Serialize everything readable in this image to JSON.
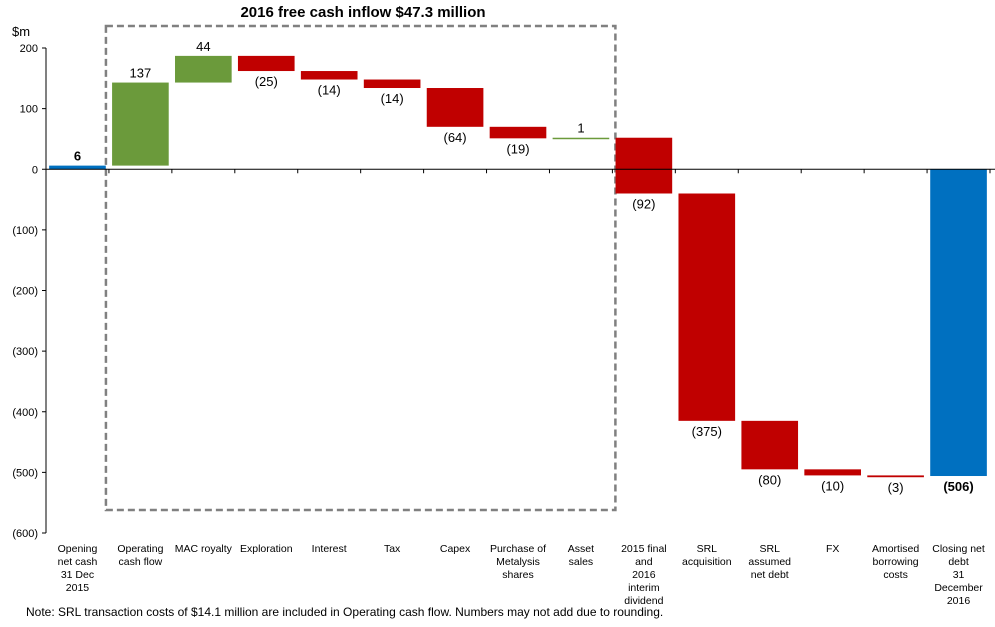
{
  "chart_data": {
    "type": "waterfall",
    "title": "2016 free cash inflow $47.3 million",
    "ylabel": "$m",
    "ylim": [
      -600,
      200
    ],
    "yticks": [
      {
        "value": 200,
        "label": "200"
      },
      {
        "value": 100,
        "label": "100"
      },
      {
        "value": 0,
        "label": "0"
      },
      {
        "value": -100,
        "label": "(100)"
      },
      {
        "value": -200,
        "label": "(200)"
      },
      {
        "value": -300,
        "label": "(300)"
      },
      {
        "value": -400,
        "label": "(400)"
      },
      {
        "value": -500,
        "label": "(500)"
      },
      {
        "value": -600,
        "label": "(600)"
      }
    ],
    "colors": {
      "total": "#0070C0",
      "positive": "#6B9A3B",
      "negative": "#C00000",
      "box": "#808080"
    },
    "bars": [
      {
        "category": [
          "Opening",
          "net cash",
          "31 Dec",
          "2015"
        ],
        "start": 0,
        "end": 6,
        "label": "6",
        "kind": "total",
        "bold": true
      },
      {
        "category": [
          "Operating",
          "cash flow"
        ],
        "start": 6,
        "end": 143,
        "label": "137",
        "kind": "positive"
      },
      {
        "category": [
          "MAC royalty"
        ],
        "start": 143,
        "end": 187,
        "label": "44",
        "kind": "positive"
      },
      {
        "category": [
          "Exploration"
        ],
        "start": 187,
        "end": 162,
        "label": "(25)",
        "kind": "negative"
      },
      {
        "category": [
          "Interest"
        ],
        "start": 162,
        "end": 148,
        "label": "(14)",
        "kind": "negative"
      },
      {
        "category": [
          "Tax"
        ],
        "start": 148,
        "end": 134,
        "label": "(14)",
        "kind": "negative"
      },
      {
        "category": [
          "Capex"
        ],
        "start": 134,
        "end": 70,
        "label": "(64)",
        "kind": "negative"
      },
      {
        "category": [
          "Purchase of",
          "Metalysis",
          "shares"
        ],
        "start": 70,
        "end": 51,
        "label": "(19)",
        "kind": "negative"
      },
      {
        "category": [
          "Asset",
          "sales"
        ],
        "start": 51,
        "end": 52,
        "label": "1",
        "kind": "positive"
      },
      {
        "category": [
          "2015 final",
          "and",
          "2016",
          "interim",
          "dividend"
        ],
        "start": 52,
        "end": -40,
        "label": "(92)",
        "kind": "negative"
      },
      {
        "category": [
          "SRL",
          "acquisition"
        ],
        "start": -40,
        "end": -415,
        "label": "(375)",
        "kind": "negative"
      },
      {
        "category": [
          "SRL",
          "assumed",
          "net debt"
        ],
        "start": -415,
        "end": -495,
        "label": "(80)",
        "kind": "negative"
      },
      {
        "category": [
          "FX"
        ],
        "start": -495,
        "end": -505,
        "label": "(10)",
        "kind": "negative"
      },
      {
        "category": [
          "Amortised",
          "borrowing",
          "costs"
        ],
        "start": -505,
        "end": -508,
        "label": "(3)",
        "kind": "negative"
      },
      {
        "category": [
          "Closing net",
          "debt",
          "31",
          "December",
          "2016"
        ],
        "start": 0,
        "end": -506,
        "label": "(506)",
        "kind": "total",
        "bold": true
      }
    ],
    "highlight_box": {
      "from_index": 1,
      "to_index": 8
    },
    "note": "Note: SRL transaction costs of $14.1 million are included in Operating cash flow. Numbers may not add due to rounding.",
    "grid": false,
    "legend": "none"
  }
}
